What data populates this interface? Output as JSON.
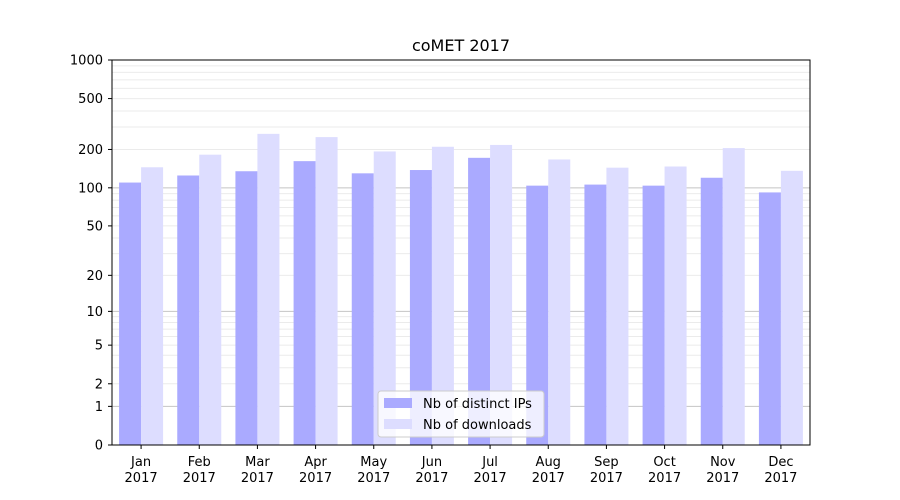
{
  "chart_data": {
    "type": "bar",
    "title": "coMET 2017",
    "xlabel": "",
    "ylabel": "",
    "y_scale": "log(1+y)",
    "ylim": [
      0,
      1000
    ],
    "y_ticks": [
      0,
      1,
      2,
      5,
      10,
      20,
      50,
      100,
      200,
      500,
      1000
    ],
    "categories": [
      "Jan\n2017",
      "Feb\n2017",
      "Mar\n2017",
      "Apr\n2017",
      "May\n2017",
      "Jun\n2017",
      "Jul\n2017",
      "Aug\n2017",
      "Sep\n2017",
      "Oct\n2017",
      "Nov\n2017",
      "Dec\n2017"
    ],
    "series": [
      {
        "name": "Nb of distinct IPs",
        "color": "#aaaaff",
        "values": [
          110,
          125,
          135,
          162,
          130,
          138,
          172,
          104,
          106,
          104,
          120,
          92
        ]
      },
      {
        "name": "Nb of downloads",
        "color": "#ddddff",
        "values": [
          145,
          182,
          265,
          250,
          193,
          210,
          217,
          167,
          144,
          147,
          205,
          136
        ]
      }
    ],
    "grid": {
      "major": [
        1,
        10,
        100,
        1000
      ],
      "minor": [
        2,
        3,
        4,
        5,
        6,
        7,
        8,
        9,
        20,
        30,
        40,
        50,
        60,
        70,
        80,
        90,
        200,
        300,
        400,
        500,
        600,
        700,
        800,
        900
      ]
    },
    "legend": {
      "placement": "bottom-center"
    }
  }
}
